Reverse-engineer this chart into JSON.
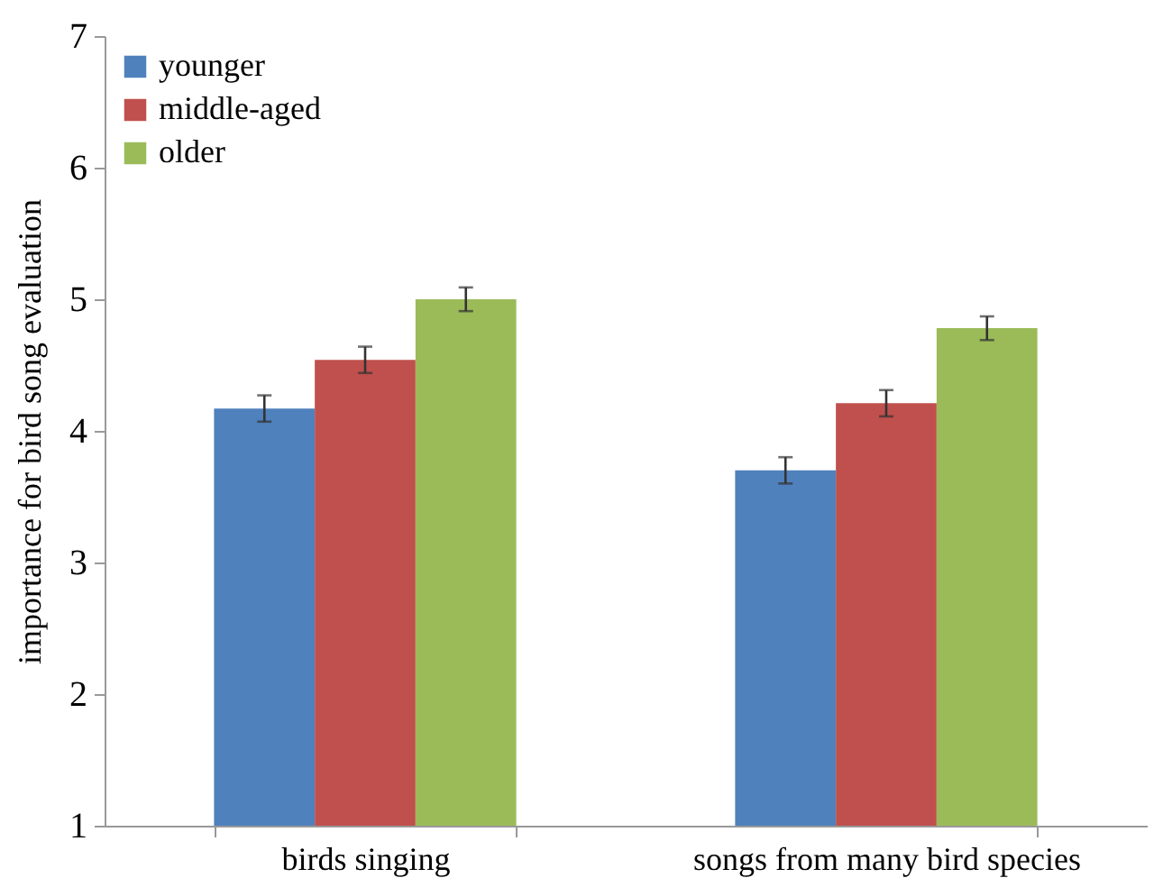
{
  "chart_data": {
    "type": "bar",
    "ylabel": "importance for bird song evaluation",
    "categories": [
      "birds singing",
      "songs from many bird species"
    ],
    "series": [
      {
        "name": "younger",
        "color": "#4f81bd",
        "values": [
          4.17,
          3.7
        ],
        "errors": [
          0.1,
          0.1
        ]
      },
      {
        "name": "middle-aged",
        "color": "#c0504d",
        "values": [
          4.54,
          4.21
        ],
        "errors": [
          0.1,
          0.1
        ]
      },
      {
        "name": "older",
        "color": "#9bbb59",
        "values": [
          5.0,
          4.78
        ],
        "errors": [
          0.09,
          0.09
        ]
      }
    ],
    "ylim": [
      1,
      7
    ],
    "yticks": [
      1,
      2,
      3,
      4,
      5,
      6,
      7
    ],
    "grid": false,
    "legend": "top left"
  }
}
